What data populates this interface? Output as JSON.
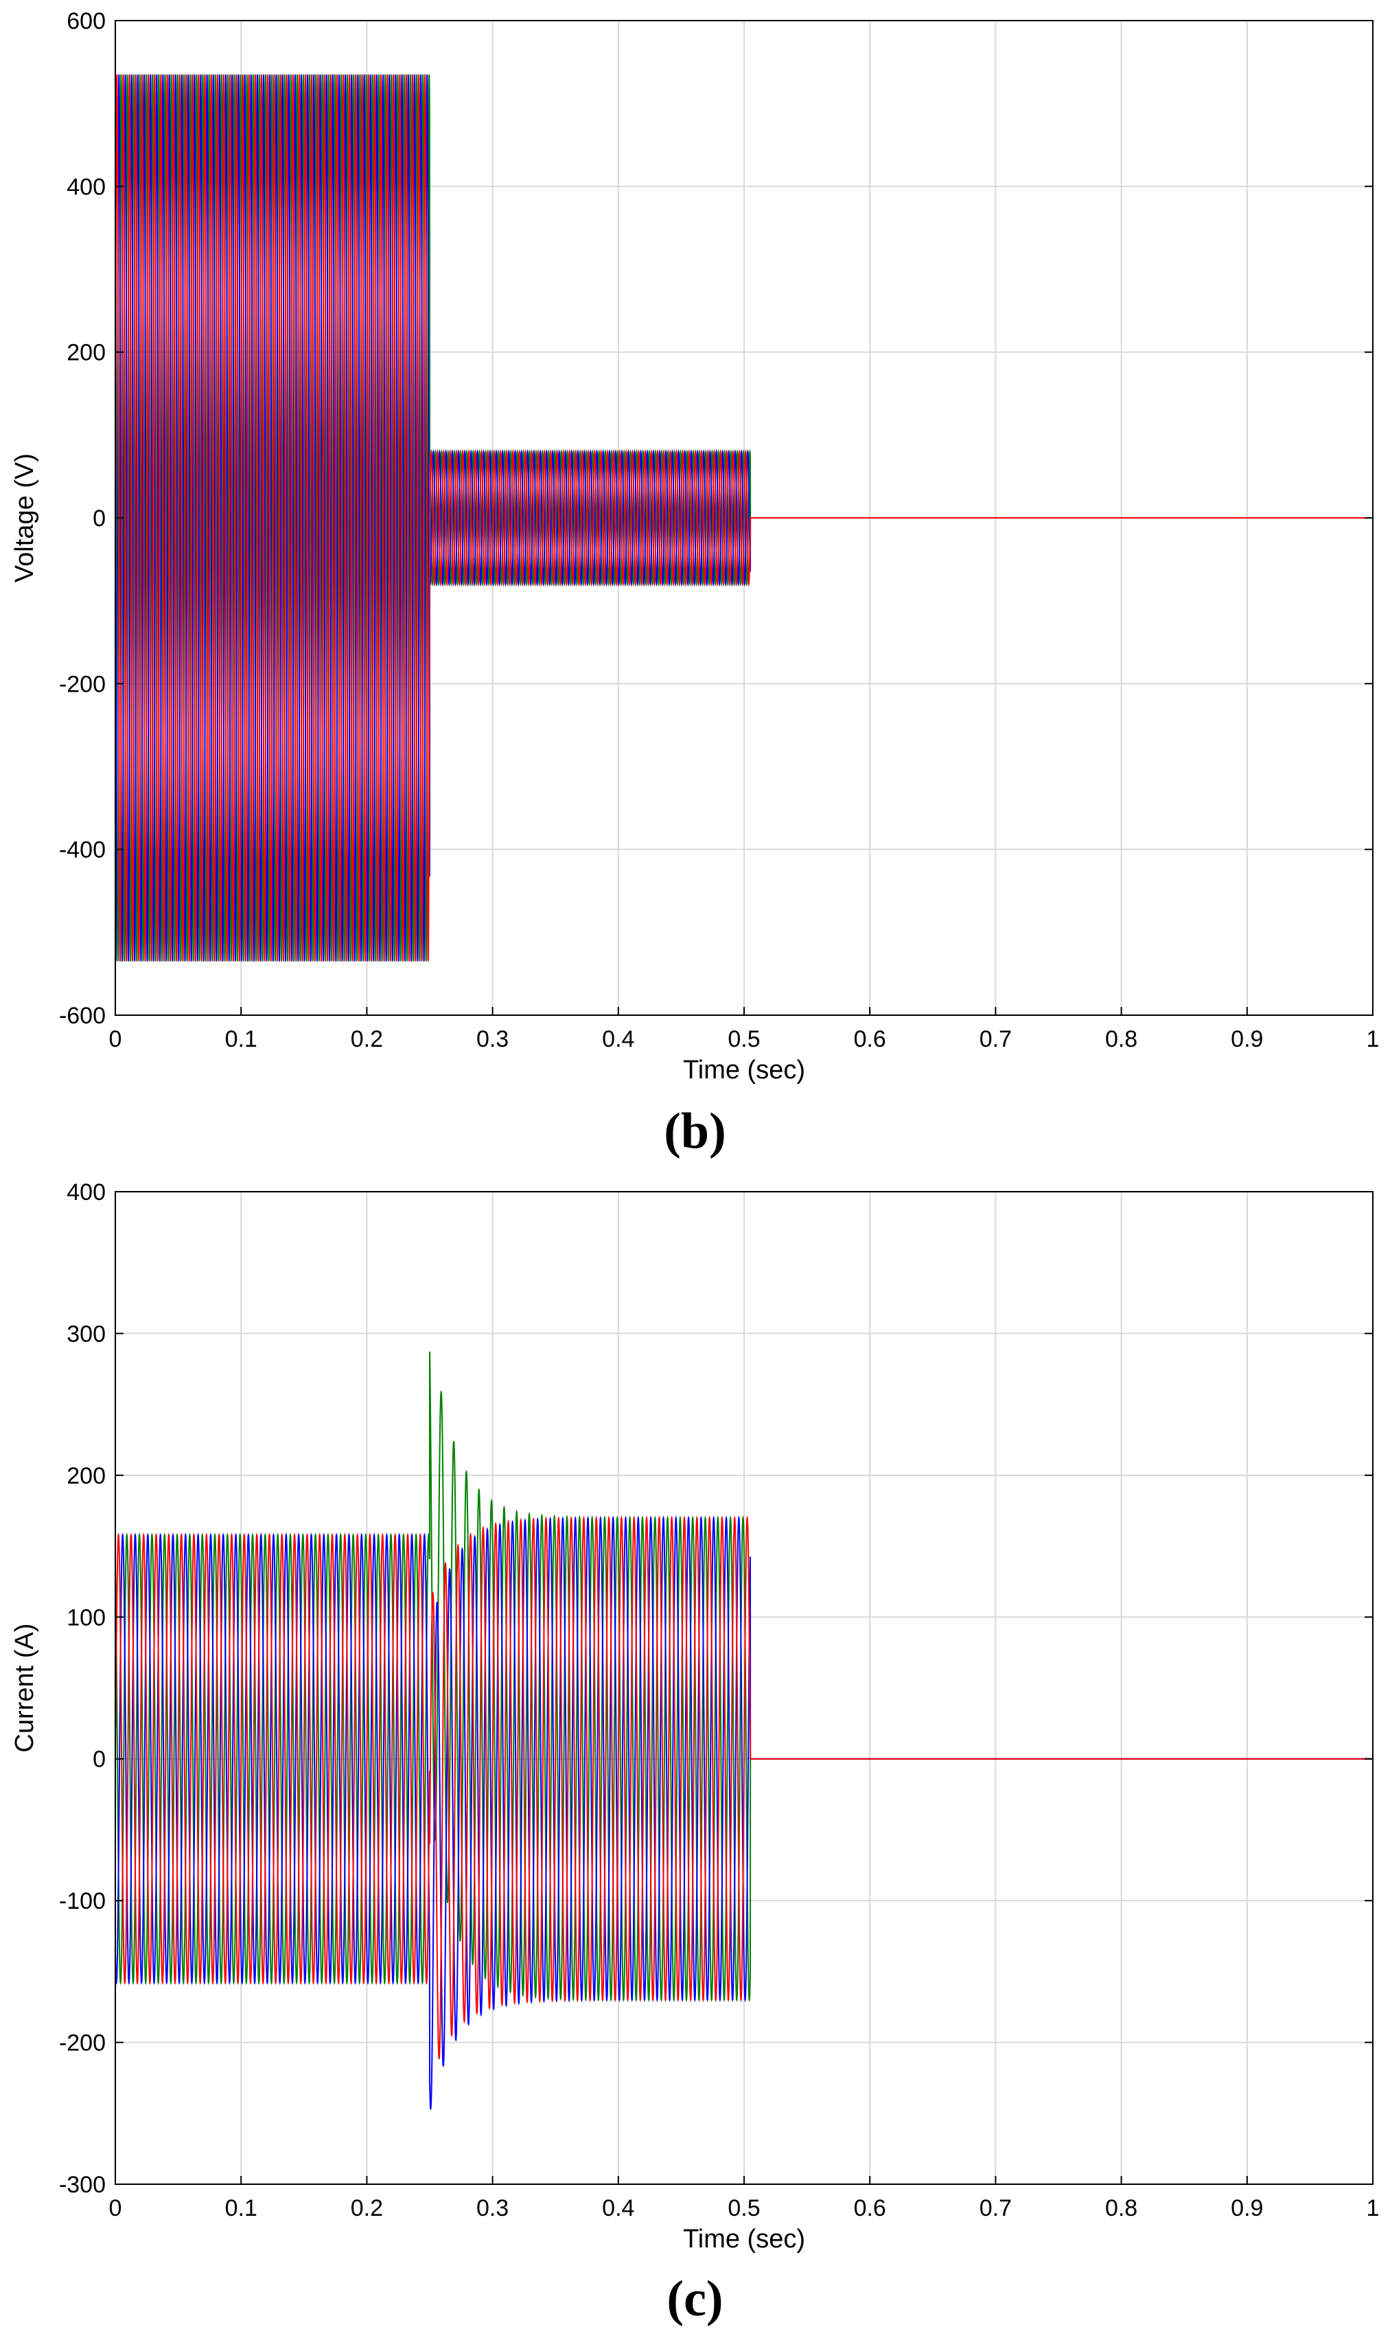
{
  "figure": {
    "captions": [
      "(b)",
      "(c)"
    ]
  },
  "colors": {
    "phase_a": "#ff0000",
    "phase_b": "#0000ff",
    "phase_c": "#008000",
    "grid": "#d9d9d9",
    "axis": "#000000"
  },
  "chart_data": [
    {
      "type": "line",
      "caption": "(b)",
      "title": "",
      "xlabel": "Time (sec)",
      "ylabel": "Voltage (V)",
      "xlim": [
        0,
        1
      ],
      "ylim": [
        -600,
        600
      ],
      "xticks": [
        0,
        0.1,
        0.2,
        0.3,
        0.4,
        0.5,
        0.6,
        0.7,
        0.8,
        0.9,
        1
      ],
      "xtick_labels": [
        "0",
        "0.1",
        "0.2",
        "0.3",
        "0.4",
        "0.5",
        "0.6",
        "0.7",
        "0.8",
        "0.9",
        "1"
      ],
      "yticks": [
        -600,
        -400,
        -200,
        0,
        200,
        400,
        600
      ],
      "ytick_labels": [
        "-600",
        "-400",
        "-200",
        "0",
        "200",
        "400",
        "600"
      ],
      "grid": true,
      "legend": "none",
      "frequency_hz": 200,
      "series": [
        {
          "color": "#ff0000",
          "phase_deg": 0,
          "segments": [
            {
              "t_start": 0,
              "t_end": 0.25,
              "amplitude": 535
            },
            {
              "t_start": 0.25,
              "t_end": 0.505,
              "amplitude": 80
            },
            {
              "t_start": 0.505,
              "t_end": 1.0,
              "amplitude": 0
            }
          ]
        },
        {
          "color": "#0000ff",
          "phase_deg": -120,
          "segments": [
            {
              "t_start": 0,
              "t_end": 0.25,
              "amplitude": 535
            },
            {
              "t_start": 0.25,
              "t_end": 0.505,
              "amplitude": 80
            },
            {
              "t_start": 0.505,
              "t_end": 1.0,
              "amplitude": 0
            }
          ]
        },
        {
          "color": "#008000",
          "phase_deg": 120,
          "segments": [
            {
              "t_start": 0,
              "t_end": 0.25,
              "amplitude": 535
            },
            {
              "t_start": 0.25,
              "t_end": 0.505,
              "amplitude": 80
            },
            {
              "t_start": 0.505,
              "t_end": 1.0,
              "amplitude": 0
            }
          ]
        }
      ]
    },
    {
      "type": "line",
      "caption": "(c)",
      "title": "",
      "xlabel": "Time (sec)",
      "ylabel": "Current (A)",
      "xlim": [
        0,
        1
      ],
      "ylim": [
        -300,
        400
      ],
      "xticks": [
        0,
        0.1,
        0.2,
        0.3,
        0.4,
        0.5,
        0.6,
        0.7,
        0.8,
        0.9,
        1
      ],
      "xtick_labels": [
        "0",
        "0.1",
        "0.2",
        "0.3",
        "0.4",
        "0.5",
        "0.6",
        "0.7",
        "0.8",
        "0.9",
        "1"
      ],
      "yticks": [
        -300,
        -200,
        -100,
        0,
        100,
        200,
        300,
        400
      ],
      "ytick_labels": [
        "-300",
        "-200",
        "-100",
        "0",
        "100",
        "200",
        "300",
        "400"
      ],
      "grid": true,
      "legend": "none",
      "frequency_hz": 100,
      "fault_time": 0.25,
      "transient_decay_tau": 0.02,
      "transient_peaks": {
        "green_max": 307,
        "blue_min": -247,
        "red_min": -225
      },
      "series": [
        {
          "color": "#ff0000",
          "phase_deg": 0,
          "segments": [
            {
              "t_start": 0,
              "t_end": 0.25,
              "amplitude": 158
            },
            {
              "t_start": 0.25,
              "t_end": 0.505,
              "amplitude": 170
            },
            {
              "t_start": 0.505,
              "t_end": 1.0,
              "amplitude": 0
            }
          ],
          "dc_offset_at_fault": -60
        },
        {
          "color": "#0000ff",
          "phase_deg": -120,
          "segments": [
            {
              "t_start": 0,
              "t_end": 0.25,
              "amplitude": 158
            },
            {
              "t_start": 0.25,
              "t_end": 0.505,
              "amplitude": 170
            },
            {
              "t_start": 0.505,
              "t_end": 1.0,
              "amplitude": 0
            }
          ],
          "dc_offset_at_fault": -80
        },
        {
          "color": "#008000",
          "phase_deg": 120,
          "segments": [
            {
              "t_start": 0,
              "t_end": 0.25,
              "amplitude": 158
            },
            {
              "t_start": 0.25,
              "t_end": 0.505,
              "amplitude": 170
            },
            {
              "t_start": 0.505,
              "t_end": 1.0,
              "amplitude": 0
            }
          ],
          "dc_offset_at_fault": 140
        }
      ]
    }
  ]
}
